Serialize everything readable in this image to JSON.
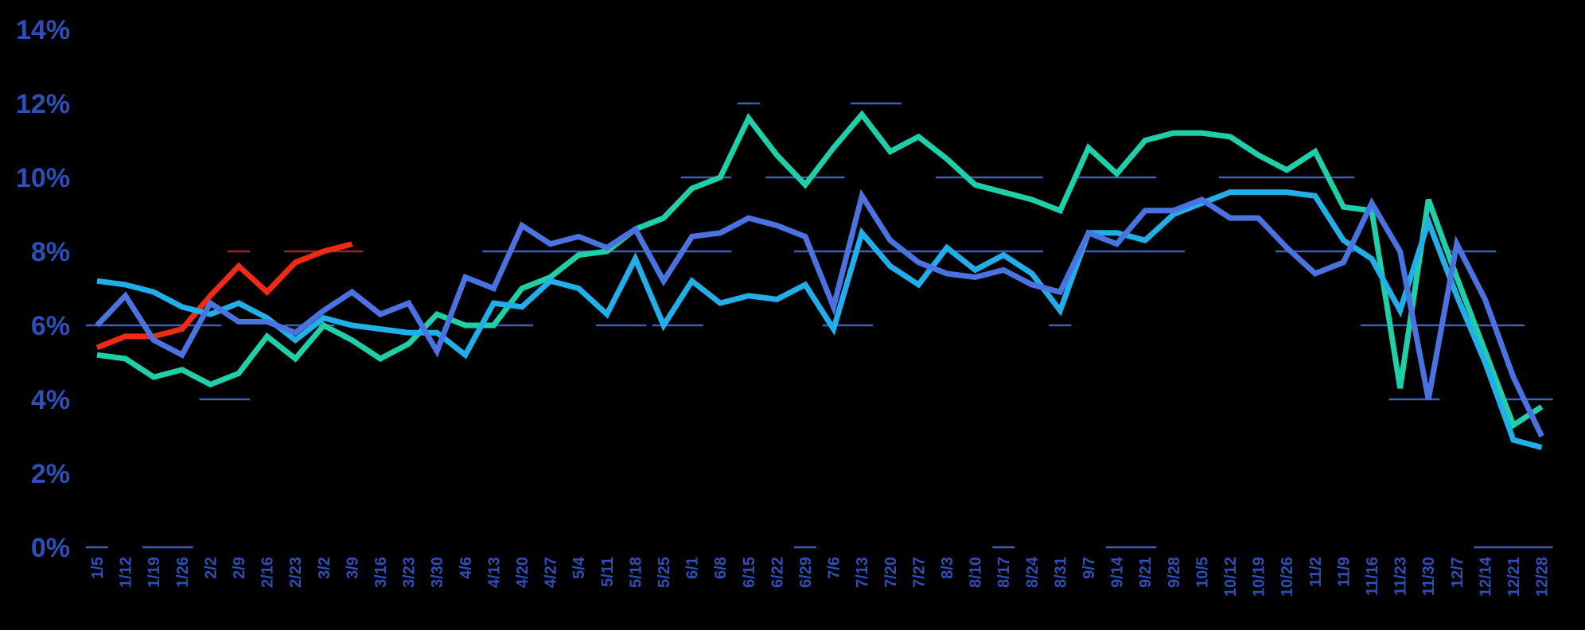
{
  "chart_data": {
    "type": "line",
    "title": "",
    "xlabel": "",
    "ylabel": "",
    "ylim": [
      0,
      14
    ],
    "grid": false,
    "background": "#000000",
    "y_tick_labels": [
      "0%",
      "2%",
      "4%",
      "6%",
      "8%",
      "10%",
      "12%",
      "14%"
    ],
    "y_tick_values": [
      0,
      2,
      4,
      6,
      8,
      10,
      12,
      14
    ],
    "categories": [
      "1/5",
      "1/12",
      "1/19",
      "1/26",
      "2/2",
      "2/9",
      "2/16",
      "2/23",
      "3/2",
      "3/9",
      "3/16",
      "3/23",
      "3/30",
      "4/6",
      "4/13",
      "4/20",
      "4/27",
      "5/4",
      "5/11",
      "5/18",
      "5/25",
      "6/1",
      "6/8",
      "6/15",
      "6/22",
      "6/29",
      "7/6",
      "7/13",
      "7/20",
      "7/27",
      "8/3",
      "8/10",
      "8/17",
      "8/24",
      "8/31",
      "9/7",
      "9/14",
      "9/21",
      "9/28",
      "10/5",
      "10/12",
      "10/19",
      "10/26",
      "11/2",
      "11/9",
      "11/16",
      "11/23",
      "11/30",
      "12/7",
      "12/14",
      "12/21",
      "12/28"
    ],
    "series": [
      {
        "color": "#f02a14",
        "values": [
          5.4,
          5.7,
          5.7,
          5.9,
          6.8,
          7.6,
          6.9,
          7.7,
          8.0,
          8.2,
          null,
          null,
          null,
          null,
          null,
          null,
          null,
          null,
          null,
          null,
          null,
          null,
          null,
          null,
          null,
          null,
          null,
          null,
          null,
          null,
          null,
          null,
          null,
          null,
          null,
          null,
          null,
          null,
          null,
          null,
          null,
          null,
          null,
          null,
          null,
          null,
          null,
          null,
          null,
          null,
          null,
          null
        ]
      },
      {
        "color": "#1fcfa8",
        "values": [
          5.2,
          5.1,
          4.6,
          4.8,
          4.4,
          4.7,
          5.7,
          5.1,
          6.0,
          5.6,
          5.1,
          5.5,
          6.3,
          6.0,
          6.0,
          7.0,
          7.3,
          7.9,
          8.0,
          8.6,
          8.9,
          9.7,
          10.0,
          11.6,
          10.6,
          9.8,
          10.8,
          11.7,
          10.7,
          11.1,
          10.5,
          9.8,
          9.6,
          9.4,
          9.1,
          10.8,
          10.1,
          11.0,
          11.2,
          11.2,
          11.1,
          10.6,
          10.2,
          10.7,
          9.2,
          9.1,
          4.3,
          9.4,
          7.3,
          5.3,
          3.3,
          3.8
        ]
      },
      {
        "color": "#22aee8",
        "values": [
          7.2,
          7.1,
          6.9,
          6.5,
          6.3,
          6.6,
          6.2,
          5.6,
          6.2,
          6.0,
          5.9,
          5.8,
          5.8,
          5.2,
          6.6,
          6.5,
          7.2,
          7.0,
          6.3,
          7.8,
          6.0,
          7.2,
          6.6,
          6.8,
          6.7,
          7.1,
          5.9,
          8.5,
          7.6,
          7.1,
          8.1,
          7.5,
          7.9,
          7.4,
          6.4,
          8.5,
          8.5,
          8.3,
          9.0,
          9.3,
          9.6,
          9.6,
          9.6,
          9.5,
          8.3,
          7.8,
          6.4,
          8.8,
          6.8,
          5.0,
          2.9,
          2.7
        ]
      },
      {
        "color": "#4a72e0",
        "values": [
          6.0,
          6.8,
          5.6,
          5.2,
          6.6,
          6.1,
          6.1,
          5.8,
          6.4,
          6.9,
          6.3,
          6.6,
          5.3,
          7.3,
          7.0,
          8.7,
          8.2,
          8.4,
          8.1,
          8.6,
          7.2,
          8.4,
          8.5,
          8.9,
          8.7,
          8.4,
          6.5,
          9.5,
          8.3,
          7.7,
          7.4,
          7.3,
          7.5,
          7.1,
          6.9,
          8.5,
          8.2,
          9.1,
          9.1,
          9.4,
          8.9,
          8.9,
          8.1,
          7.4,
          7.7,
          9.3,
          8.0,
          4.0,
          8.2,
          6.7,
          4.6,
          3.0
        ]
      }
    ],
    "reference_dashes": [
      {
        "color": "#3d5fb0",
        "from": 0,
        "to": 0,
        "y": 0
      },
      {
        "color": "#3d5fb0",
        "from": 2,
        "to": 3,
        "y": 0
      },
      {
        "color": "#3d5fb0",
        "from": 25,
        "to": 25,
        "y": 0
      },
      {
        "color": "#3d5fb0",
        "from": 32,
        "to": 32,
        "y": 0
      },
      {
        "color": "#3d5fb0",
        "from": 36,
        "to": 37,
        "y": 0
      },
      {
        "color": "#3d5fb0",
        "from": 49,
        "to": 51,
        "y": 0
      },
      {
        "color": "#3d5fb0",
        "from": 4,
        "to": 5,
        "y": 4
      },
      {
        "color": "#3d5fb0",
        "from": 46,
        "to": 47,
        "y": 4
      },
      {
        "color": "#3d5fb0",
        "from": 50,
        "to": 51,
        "y": 4
      },
      {
        "color": "#3d5fb0",
        "from": 0,
        "to": 4,
        "y": 6
      },
      {
        "color": "#3d5fb0",
        "from": 7,
        "to": 8,
        "y": 6
      },
      {
        "color": "#3d5fb0",
        "from": 14,
        "to": 15,
        "y": 6
      },
      {
        "color": "#3d5fb0",
        "from": 18,
        "to": 19,
        "y": 6
      },
      {
        "color": "#3d5fb0",
        "from": 20,
        "to": 21,
        "y": 6
      },
      {
        "color": "#3d5fb0",
        "from": 26,
        "to": 27,
        "y": 6
      },
      {
        "color": "#3d5fb0",
        "from": 34,
        "to": 34,
        "y": 6
      },
      {
        "color": "#3d5fb0",
        "from": 45,
        "to": 48,
        "y": 6
      },
      {
        "color": "#3d5fb0",
        "from": 49,
        "to": 50,
        "y": 6
      },
      {
        "color": "#8e2a2a",
        "from": 5,
        "to": 5,
        "y": 8
      },
      {
        "color": "#8e2a2a",
        "from": 7,
        "to": 9,
        "y": 8
      },
      {
        "color": "#3d5fb0",
        "from": 14,
        "to": 22,
        "y": 8
      },
      {
        "color": "#3d5fb0",
        "from": 25,
        "to": 33,
        "y": 8
      },
      {
        "color": "#3d5fb0",
        "from": 35,
        "to": 38,
        "y": 8
      },
      {
        "color": "#3d5fb0",
        "from": 42,
        "to": 44,
        "y": 8
      },
      {
        "color": "#3d5fb0",
        "from": 48,
        "to": 49,
        "y": 8
      },
      {
        "color": "#3d5fb0",
        "from": 21,
        "to": 22,
        "y": 10
      },
      {
        "color": "#3d5fb0",
        "from": 24,
        "to": 26,
        "y": 10
      },
      {
        "color": "#3d5fb0",
        "from": 30,
        "to": 33,
        "y": 10
      },
      {
        "color": "#3d5fb0",
        "from": 35,
        "to": 37,
        "y": 10
      },
      {
        "color": "#3d5fb0",
        "from": 40,
        "to": 44,
        "y": 10
      },
      {
        "color": "#3d5fb0",
        "from": 23,
        "to": 23,
        "y": 12
      },
      {
        "color": "#3d5fb0",
        "from": 27,
        "to": 28,
        "y": 12
      }
    ]
  }
}
